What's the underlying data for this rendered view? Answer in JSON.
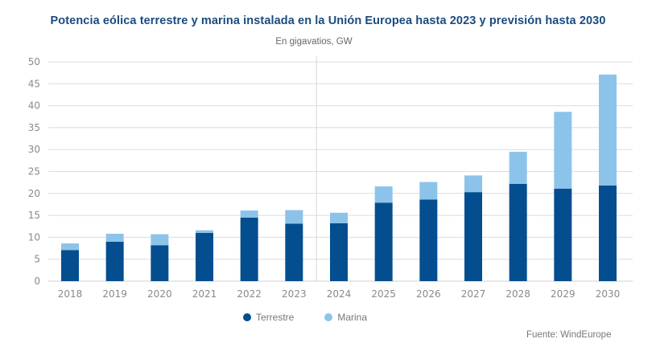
{
  "chart_data": {
    "type": "bar",
    "stacked": true,
    "title": "Potencia eólica terrestre y marina instalada en la Unión Europea hasta 2023 y previsión hasta 2030",
    "subtitle": "En gigavatios, GW",
    "xlabel": "",
    "ylabel": "",
    "ylim": [
      0,
      50
    ],
    "yticks": [
      0,
      5,
      10,
      15,
      20,
      25,
      30,
      35,
      40,
      45,
      50
    ],
    "grid": true,
    "legend_position": "bottom-center",
    "divider_after": "2023",
    "categories": [
      "2018",
      "2019",
      "2020",
      "2021",
      "2022",
      "2023",
      "2024",
      "2025",
      "2026",
      "2027",
      "2028",
      "2029",
      "2030"
    ],
    "series": [
      {
        "name": "Terrestre",
        "color": "#044e8f",
        "values": [
          7.1,
          9.0,
          8.2,
          11.0,
          14.5,
          13.1,
          13.2,
          17.9,
          18.6,
          20.3,
          22.2,
          21.1,
          21.8
        ]
      },
      {
        "name": "Marina",
        "color": "#8cc3ea",
        "values": [
          1.5,
          1.8,
          2.5,
          0.6,
          1.6,
          3.1,
          2.4,
          3.7,
          4.0,
          3.8,
          7.3,
          17.5,
          25.3
        ]
      }
    ],
    "totals": [
      8.6,
      10.8,
      10.7,
      11.6,
      16.1,
      16.2,
      15.6,
      21.6,
      22.6,
      24.1,
      29.5,
      38.6,
      47.1
    ],
    "source": "Fuente: WindEurope"
  }
}
